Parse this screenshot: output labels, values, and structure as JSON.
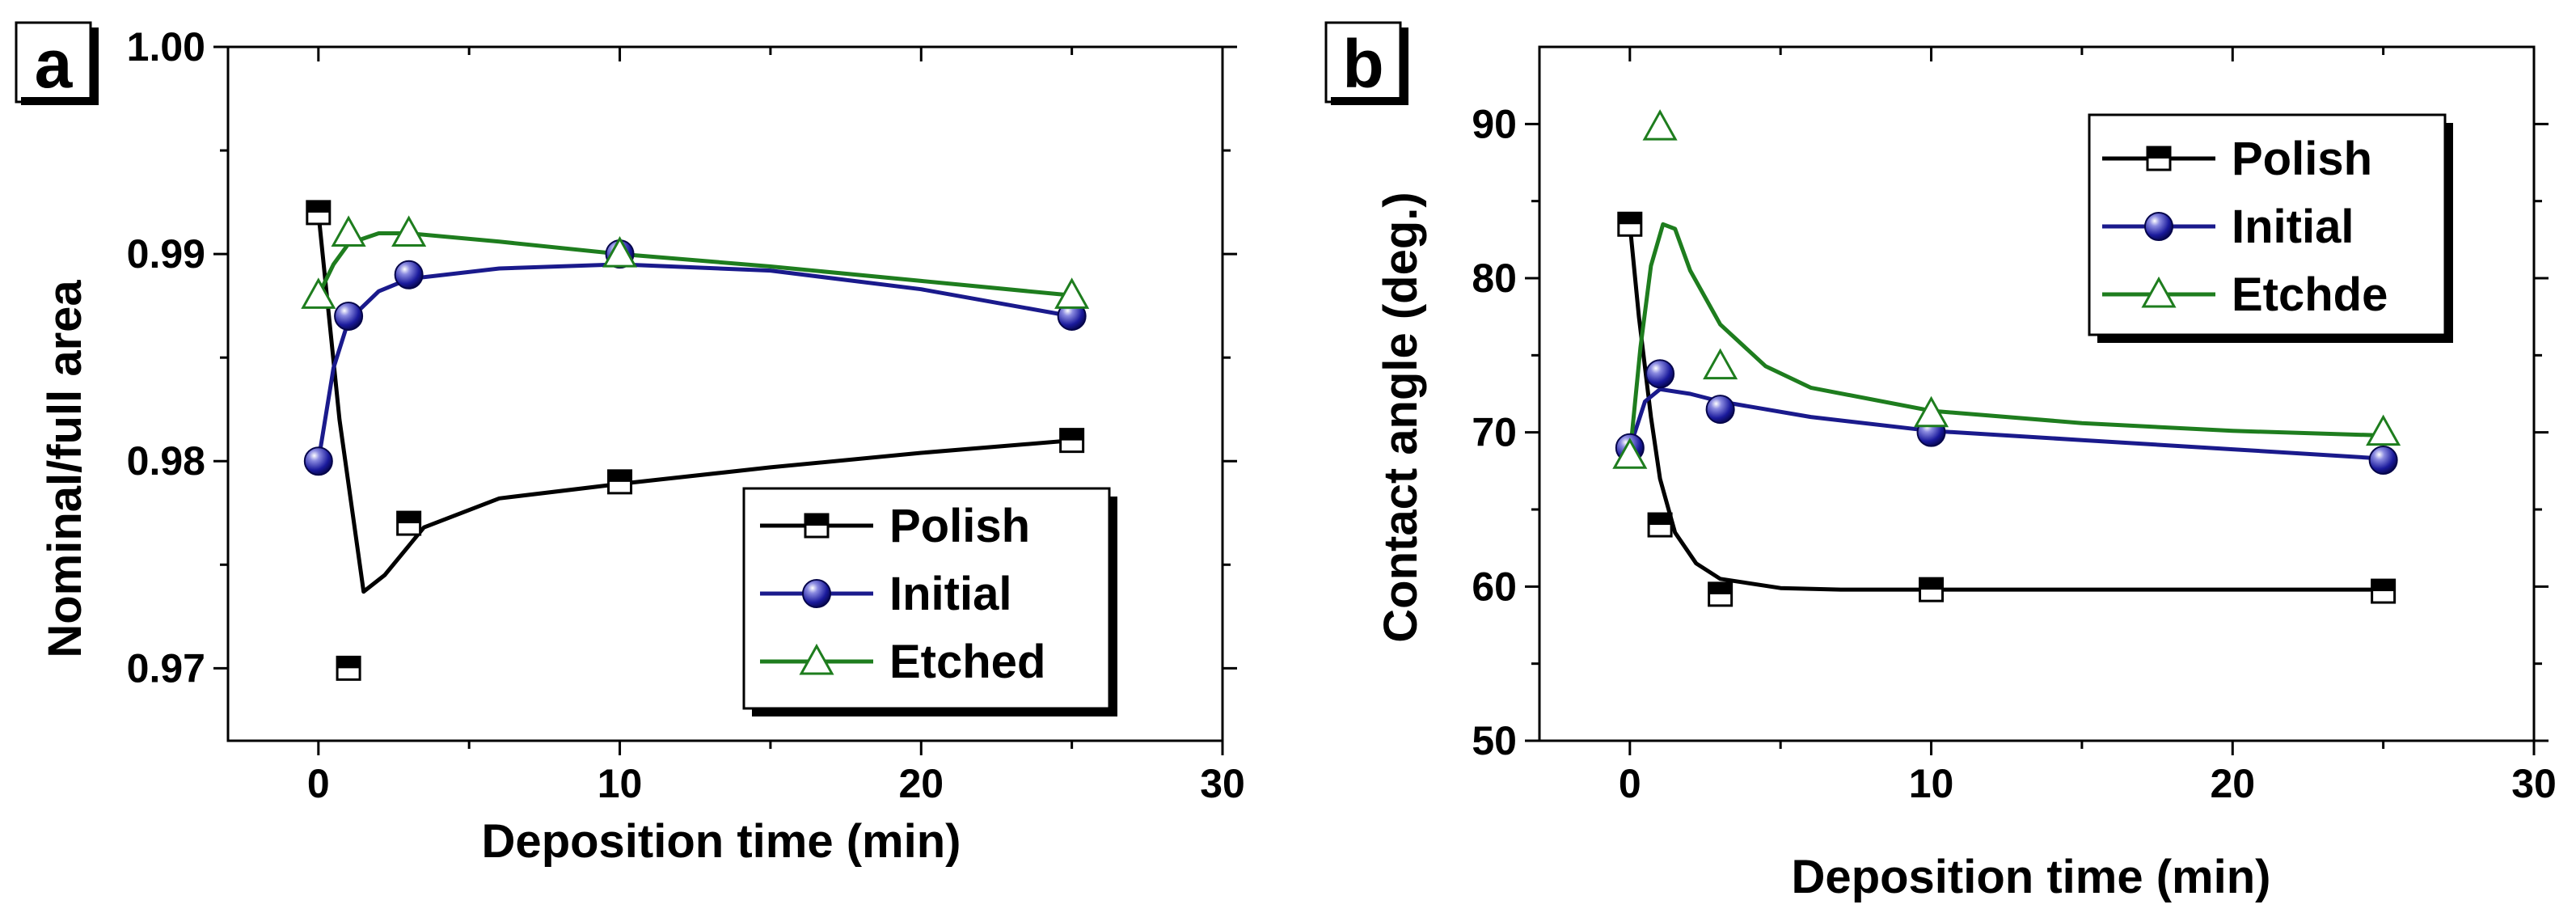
{
  "chart_data": [
    {
      "type": "line",
      "panel": "a",
      "xlabel": "Deposition time (min)",
      "ylabel": "Nominal/full area",
      "xlim": [
        -3,
        30
      ],
      "ylim": [
        0.9665,
        1.0
      ],
      "xticks": [
        0,
        10,
        20,
        30
      ],
      "xtick_labels": [
        "0",
        "10",
        "20",
        "30"
      ],
      "yticks": [
        0.97,
        0.98,
        0.99,
        1.0
      ],
      "ytick_labels": [
        "0.97",
        "0.98",
        "0.99",
        "1.00"
      ],
      "legend_position": "bottom-right",
      "series": [
        {
          "name": "Polish",
          "marker": "square",
          "color": "#000000",
          "x": [
            0,
            1,
            3,
            10,
            25
          ],
          "y": [
            0.992,
            0.97,
            0.977,
            0.979,
            0.981
          ],
          "curve": [
            [
              0,
              0.992
            ],
            [
              0.7,
              0.982
            ],
            [
              1.5,
              0.9737
            ],
            [
              2.2,
              0.9745
            ],
            [
              3.5,
              0.9768
            ],
            [
              6,
              0.9782
            ],
            [
              10,
              0.9789
            ],
            [
              15,
              0.9797
            ],
            [
              20,
              0.9804
            ],
            [
              25,
              0.981
            ]
          ]
        },
        {
          "name": "Initial",
          "marker": "sphere",
          "color": "#1a1a8c",
          "x": [
            0,
            1,
            3,
            10,
            25
          ],
          "y": [
            0.98,
            0.987,
            0.989,
            0.99,
            0.987
          ],
          "curve": [
            [
              0,
              0.98
            ],
            [
              0.5,
              0.9845
            ],
            [
              1,
              0.9868
            ],
            [
              2,
              0.9882
            ],
            [
              3,
              0.9888
            ],
            [
              6,
              0.9893
            ],
            [
              10,
              0.9895
            ],
            [
              15,
              0.9892
            ],
            [
              20,
              0.9883
            ],
            [
              25,
              0.987
            ]
          ]
        },
        {
          "name": "Etched",
          "marker": "triangle",
          "color": "#1e7d1e",
          "x": [
            0,
            1,
            3,
            10,
            25
          ],
          "y": [
            0.988,
            0.991,
            0.991,
            0.99,
            0.988
          ],
          "curve": [
            [
              0,
              0.988
            ],
            [
              0.5,
              0.9895
            ],
            [
              1,
              0.9905
            ],
            [
              2,
              0.991
            ],
            [
              3,
              0.991
            ],
            [
              6,
              0.9906
            ],
            [
              10,
              0.99
            ],
            [
              15,
              0.9894
            ],
            [
              20,
              0.9887
            ],
            [
              25,
              0.988
            ]
          ]
        }
      ]
    },
    {
      "type": "line",
      "panel": "b",
      "xlabel": "Deposition time (min)",
      "ylabel": "Contact angle (deg.)",
      "xlim": [
        -3,
        30
      ],
      "ylim": [
        50,
        95
      ],
      "xticks": [
        0,
        10,
        20,
        30
      ],
      "xtick_labels": [
        "0",
        "10",
        "20",
        "30"
      ],
      "yticks": [
        50,
        60,
        70,
        80,
        90
      ],
      "ytick_labels": [
        "50",
        "60",
        "70",
        "80",
        "90"
      ],
      "legend_position": "top-right",
      "series": [
        {
          "name": "Polish",
          "marker": "square",
          "color": "#000000",
          "x": [
            0,
            1,
            3,
            10,
            25
          ],
          "y": [
            83.5,
            64,
            59.5,
            59.8,
            59.7
          ],
          "curve": [
            [
              0,
              83.5
            ],
            [
              0.3,
              77.5
            ],
            [
              0.7,
              71
            ],
            [
              1,
              67
            ],
            [
              1.5,
              63.5
            ],
            [
              2.2,
              61.5
            ],
            [
              3,
              60.5
            ],
            [
              5,
              59.9
            ],
            [
              7,
              59.8
            ],
            [
              10,
              59.8
            ],
            [
              15,
              59.8
            ],
            [
              20,
              59.8
            ],
            [
              25,
              59.8
            ]
          ]
        },
        {
          "name": "Initial",
          "marker": "sphere",
          "color": "#1a1a8c",
          "x": [
            0,
            1,
            3,
            10,
            25
          ],
          "y": [
            69,
            73.8,
            71.5,
            70,
            68.2
          ],
          "curve": [
            [
              0,
              69
            ],
            [
              0.5,
              72
            ],
            [
              1,
              72.8
            ],
            [
              2,
              72.5
            ],
            [
              3,
              72
            ],
            [
              6,
              71
            ],
            [
              10,
              70.1
            ],
            [
              15,
              69.5
            ],
            [
              20,
              68.9
            ],
            [
              25,
              68.3
            ]
          ]
        },
        {
          "name": "Etchde",
          "marker": "triangle",
          "color": "#1e7d1e",
          "x": [
            0,
            1,
            3,
            10,
            25
          ],
          "y": [
            68.5,
            89.8,
            74.3,
            71.2,
            70
          ],
          "curve": [
            [
              0,
              68.5
            ],
            [
              0.35,
              75.5
            ],
            [
              0.7,
              80.8
            ],
            [
              1.1,
              83.5
            ],
            [
              1.5,
              83.2
            ],
            [
              2,
              80.5
            ],
            [
              3,
              77
            ],
            [
              4.5,
              74.3
            ],
            [
              6,
              72.9
            ],
            [
              10,
              71.4
            ],
            [
              15,
              70.6
            ],
            [
              20,
              70.1
            ],
            [
              25,
              69.8
            ]
          ]
        }
      ]
    }
  ]
}
